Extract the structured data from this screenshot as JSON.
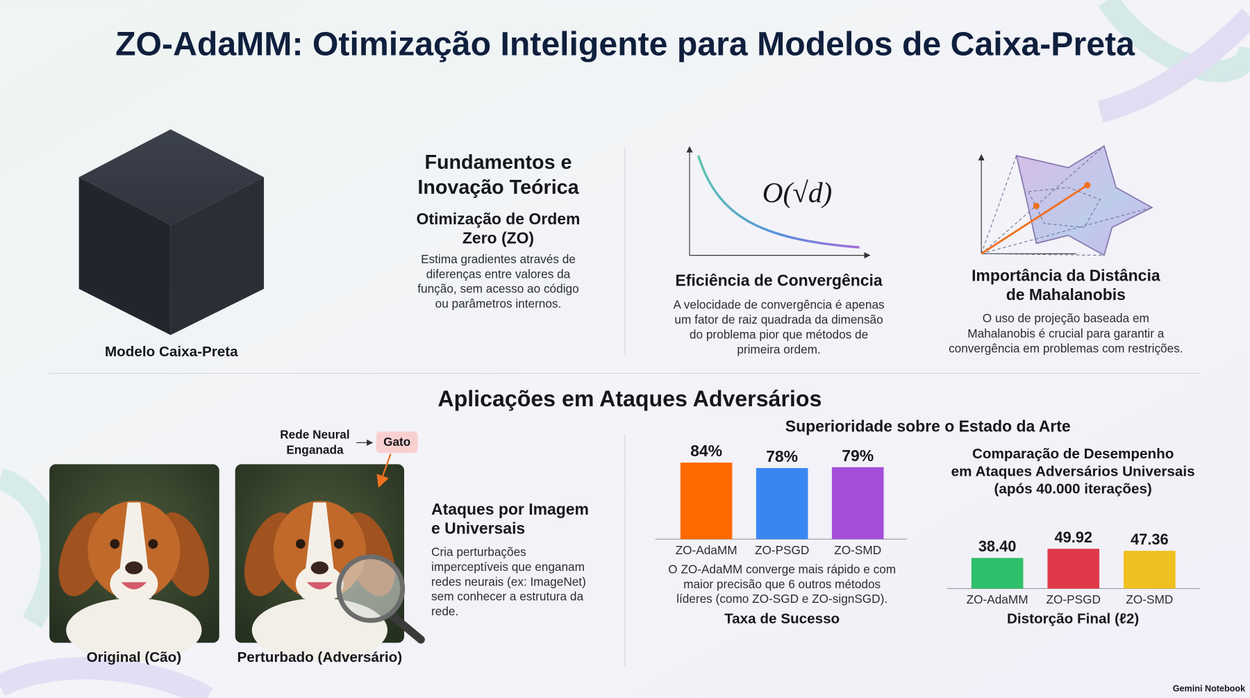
{
  "title": "ZO-AdaMM: Otimização Inteligente para Modelos de Caixa-Preta",
  "black_box": {
    "label": "Modelo Caixa-Preta"
  },
  "foundations": {
    "heading": [
      "Fundamentos e",
      "Inovação Teórica"
    ],
    "subheading": [
      "Otimização de Ordem",
      "Zero (ZO)"
    ],
    "text": [
      "Estima gradientes através de",
      "diferenças entre valores da",
      "função, sem acesso ao código",
      "ou parâmetros internos."
    ]
  },
  "convergence": {
    "formula": "O(√d)",
    "heading": "Eficiência de Convergência",
    "text": [
      "A velocidade de convergência é apenas",
      "um fator de raiz quadrada da dimensão",
      "do problema pior que métodos de",
      "primeira ordem."
    ]
  },
  "mahalanobis": {
    "heading": [
      "Importância da Distância",
      "de Mahalanobis"
    ],
    "text": [
      "O uso de projeção baseada em",
      "Mahalanobis é crucial para garantir a",
      "convergência em problemas com restrições."
    ]
  },
  "applications": {
    "heading": "Aplicações em Ataques Adversários",
    "network_label": [
      "Rede Neural",
      "Enganada"
    ],
    "target_label": "Gato",
    "original_caption": "Original (Cão)",
    "perturbed_caption": "Perturbado (Adversário)",
    "attacks_heading": [
      "Ataques por Imagem",
      "e Universais"
    ],
    "attacks_text": [
      "Cria perturbações",
      "imperceptíveis que enganam",
      "redes neurais (ex: ImageNet)",
      "sem conhecer a estrutura da",
      "rede."
    ]
  },
  "superiority": {
    "heading": "Superioridade sobre o Estado da Arte"
  },
  "chart_data": [
    {
      "type": "bar",
      "categories": [
        "ZO-AdaMM",
        "ZO-PSGD",
        "ZO-SMD"
      ],
      "values": [
        84,
        78,
        79
      ],
      "value_labels": [
        "84%",
        "78%",
        "79%"
      ],
      "colors": [
        "#ff6a00",
        "#3a86f0",
        "#a44fdb"
      ],
      "caption": [
        "O ZO-AdaMM converge mais rápido e com",
        "maior precisão que 6 outros métodos",
        "líderes (como ZO-SGD e ZO-signSGD)."
      ],
      "xlabel": "Taxa de Sucesso"
    },
    {
      "type": "bar",
      "title": [
        "Comparação de Desempenho",
        "em Ataques Adversários Universais",
        "(após 40.000 iterações)"
      ],
      "categories": [
        "ZO-AdaMM",
        "ZO-PSGD",
        "ZO-SMD"
      ],
      "values": [
        38.4,
        49.92,
        47.36
      ],
      "value_labels": [
        "38.40",
        "49.92",
        "47.36"
      ],
      "colors": [
        "#2fbf6a",
        "#e03a4a",
        "#f0c020"
      ],
      "xlabel": "Distorção Final (ℓ2)"
    }
  ],
  "footer": "Gemini Notebook"
}
